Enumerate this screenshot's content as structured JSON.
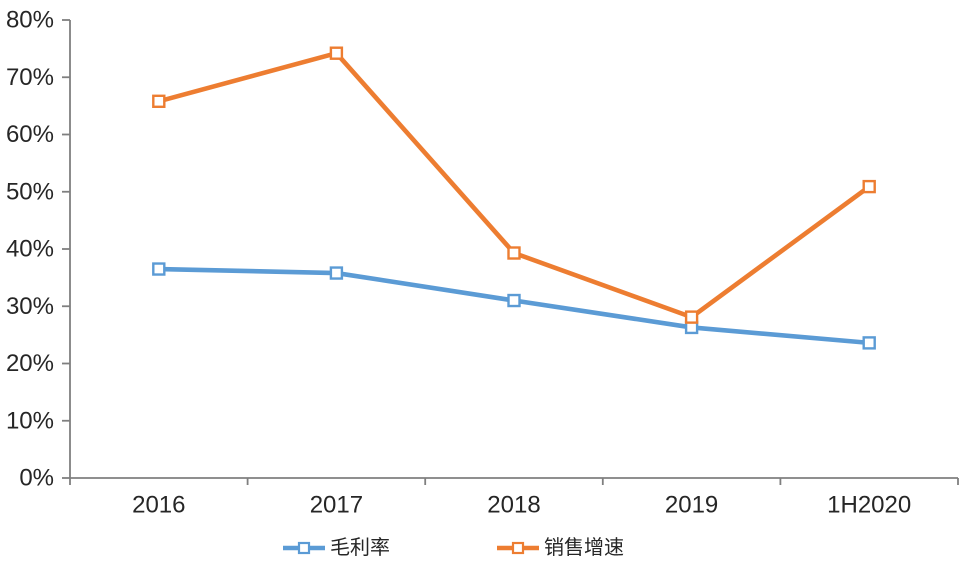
{
  "chart_data": {
    "type": "line",
    "title": "",
    "xlabel": "",
    "ylabel": "",
    "categories": [
      "2016",
      "2017",
      "2018",
      "2019",
      "1H2020"
    ],
    "series": [
      {
        "name": "毛利率",
        "key": "gross-margin",
        "color": "#5B9BD5",
        "marker": "hollow-square",
        "values": [
          36.5,
          35.8,
          31.0,
          26.3,
          23.6
        ]
      },
      {
        "name": "销售增速",
        "key": "sales-growth",
        "color": "#ED7D31",
        "marker": "hollow-square",
        "values": [
          65.8,
          74.2,
          39.3,
          28.1,
          50.9
        ]
      }
    ],
    "ylim": [
      0,
      80
    ],
    "y_tick_step": 10,
    "y_tick_labels": [
      "0%",
      "10%",
      "20%",
      "30%",
      "40%",
      "50%",
      "60%",
      "70%",
      "80%"
    ],
    "grid": false,
    "legend_position": "bottom",
    "axis_color": "#7F7F7F",
    "text_color": "#262626"
  }
}
